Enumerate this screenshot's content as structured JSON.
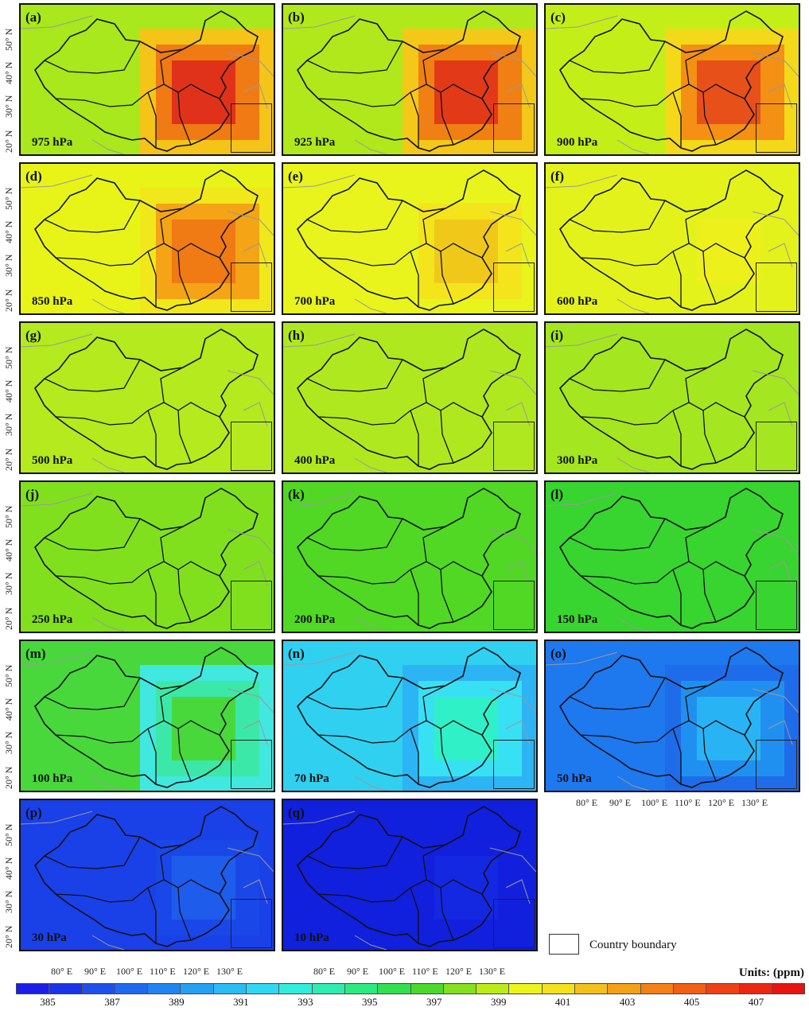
{
  "panels": [
    {
      "id": "(a)",
      "level": "975 hPa",
      "base": "#a8e81c",
      "center": "#e0321a",
      "ring": "#f07a14",
      "ring2": "#f4c418"
    },
    {
      "id": "(b)",
      "level": "925 hPa",
      "base": "#b0e81c",
      "center": "#e23a18",
      "ring": "#f08014",
      "ring2": "#f4c818"
    },
    {
      "id": "(c)",
      "level": "900 hPa",
      "base": "#c4ee18",
      "center": "#e8501a",
      "ring": "#f49014",
      "ring2": "#f4d81a"
    },
    {
      "id": "(d)",
      "level": "850 hPa",
      "base": "#e8f418",
      "center": "#f07a14",
      "ring": "#f4a414",
      "ring2": "#f0e81a"
    },
    {
      "id": "(e)",
      "level": "700 hPa",
      "base": "#e8f41c",
      "center": "#f0c81a",
      "ring": "#f4e41c",
      "ring2": "#e8f41c"
    },
    {
      "id": "(f)",
      "level": "600 hPa",
      "base": "#e4f21c",
      "center": "#eef01c",
      "ring": "#e4f21c",
      "ring2": "#e4f21c"
    },
    {
      "id": "(g)",
      "level": "500 hPa",
      "base": "#b4ea1e",
      "center": "#b4ea1e",
      "ring": "#b4ea1e",
      "ring2": "#b4ea1e"
    },
    {
      "id": "(h)",
      "level": "400 hPa",
      "base": "#b0e820",
      "center": "#b0e820",
      "ring": "#b0e820",
      "ring2": "#b0e820"
    },
    {
      "id": "(i)",
      "level": "300 hPa",
      "base": "#a4e620",
      "center": "#a4e620",
      "ring": "#a4e620",
      "ring2": "#a4e620"
    },
    {
      "id": "(j)",
      "level": "250 hPa",
      "base": "#80e01e",
      "center": "#80e01e",
      "ring": "#80e01e",
      "ring2": "#80e01e"
    },
    {
      "id": "(k)",
      "level": "200 hPa",
      "base": "#50d824",
      "center": "#50d824",
      "ring": "#50d824",
      "ring2": "#50d824"
    },
    {
      "id": "(l)",
      "level": "150 hPa",
      "base": "#38d430",
      "center": "#38d430",
      "ring": "#38d430",
      "ring2": "#38d430"
    },
    {
      "id": "(m)",
      "level": "100 hPa",
      "base": "#48d83c",
      "center": "#48d83c",
      "ring": "#3ce8a8",
      "ring2": "#40e8e0"
    },
    {
      "id": "(n)",
      "level": "70 hPa",
      "base": "#30d0f0",
      "center": "#30f0c8",
      "ring": "#38e0f4",
      "ring2": "#2cb4f4"
    },
    {
      "id": "(o)",
      "level": "50 hPa",
      "base": "#1e78ee",
      "center": "#28b4f4",
      "ring": "#2090f0",
      "ring2": "#1e6cea"
    },
    {
      "id": "(p)",
      "level": "30 hPa",
      "base": "#1a40e8",
      "center": "#1e5cec",
      "ring": "#1a48e8",
      "ring2": "#1a40e8"
    },
    {
      "id": "(q)",
      "level": "10 hPa",
      "base": "#1020dc",
      "center": "#1428e2",
      "ring": "#1220de",
      "ring2": "#1020dc"
    }
  ],
  "lat_labels": [
    "50° N",
    "40° N",
    "30° N",
    "20° N"
  ],
  "lon_labels": [
    "80° E",
    "90° E",
    "100° E",
    "110° E",
    "120° E",
    "130° E"
  ],
  "legend": {
    "label": "Country boundary"
  },
  "units": "Units: (ppm)",
  "colorbar": {
    "colors": [
      "#1a1ee6",
      "#1a34e8",
      "#1e50ea",
      "#206aee",
      "#2284f0",
      "#28a0f2",
      "#2cbcf4",
      "#30d8f4",
      "#34ecdc",
      "#30ecb0",
      "#2cea80",
      "#34e050",
      "#4cd82c",
      "#84e020",
      "#bcec18",
      "#ecf41c",
      "#f4e01c",
      "#f4c01c",
      "#f4a01a",
      "#f48018",
      "#f06016",
      "#ee4214",
      "#ea2812",
      "#e81410"
    ],
    "ticks": [
      "385",
      "387",
      "389",
      "391",
      "393",
      "395",
      "397",
      "399",
      "401",
      "403",
      "405",
      "407"
    ]
  }
}
